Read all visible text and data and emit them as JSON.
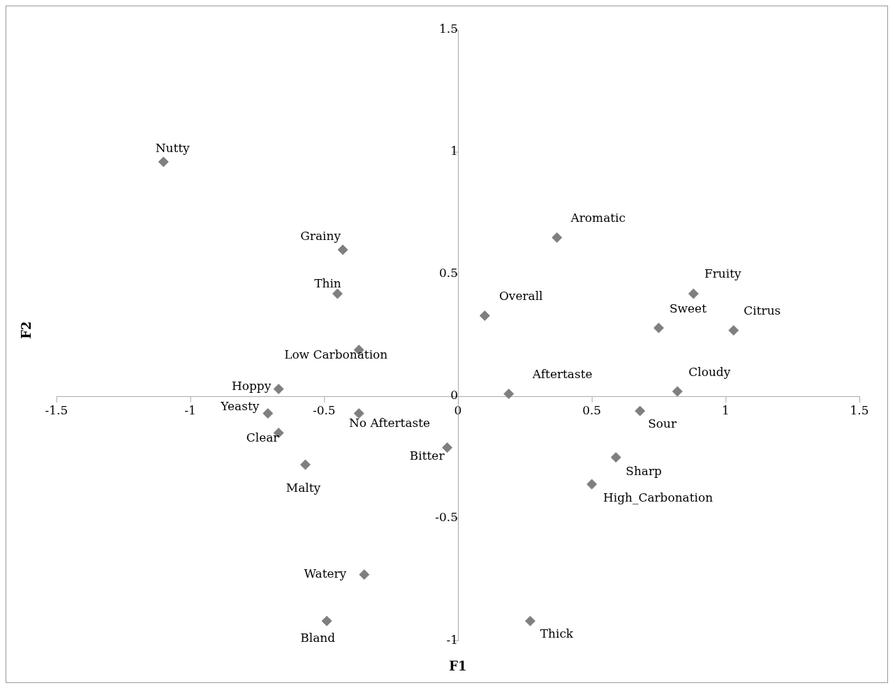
{
  "chart_data": {
    "type": "scatter",
    "xlabel": "F1",
    "ylabel": "F2",
    "x": [
      -1.1,
      -0.43,
      -0.45,
      -0.37,
      -0.67,
      -0.71,
      -0.67,
      -0.37,
      -0.57,
      -0.04,
      -0.35,
      -0.49,
      0.27,
      0.1,
      0.37,
      0.19,
      0.88,
      0.75,
      1.03,
      0.82,
      0.68,
      0.59,
      0.5
    ],
    "values": [
      0.96,
      0.6,
      0.42,
      0.19,
      0.03,
      -0.07,
      -0.15,
      -0.07,
      -0.28,
      -0.21,
      -0.73,
      -0.92,
      -0.92,
      0.33,
      0.65,
      0.01,
      0.42,
      0.28,
      0.27,
      0.02,
      -0.06,
      -0.25,
      -0.36
    ],
    "color": "#7f7f7f",
    "marker": "diamond",
    "grid": false,
    "legend": false,
    "xlim": [
      -1.5,
      1.5
    ],
    "xticks": [
      -1.5,
      -1,
      -0.5,
      0,
      0.5,
      1,
      1.5
    ],
    "ylim": [
      -1,
      1.5
    ],
    "yticks": [
      -1,
      -0.5,
      0,
      0.5,
      1,
      1.5
    ],
    "annotations": [
      {
        "text": "Nutty",
        "x": -1.1,
        "y": 0.96
      },
      {
        "text": "Grainy",
        "x": -0.43,
        "y": 0.6
      },
      {
        "text": "Thin",
        "x": -0.45,
        "y": 0.42
      },
      {
        "text": "Low Carbonation",
        "x": -0.37,
        "y": 0.19
      },
      {
        "text": "Hoppy",
        "x": -0.67,
        "y": 0.03
      },
      {
        "text": "Yeasty",
        "x": -0.71,
        "y": -0.07
      },
      {
        "text": "Clear",
        "x": -0.67,
        "y": -0.15
      },
      {
        "text": "No Aftertaste",
        "x": -0.37,
        "y": -0.07
      },
      {
        "text": "Malty",
        "x": -0.57,
        "y": -0.28
      },
      {
        "text": "Bitter",
        "x": -0.04,
        "y": -0.21
      },
      {
        "text": "Watery",
        "x": -0.35,
        "y": -0.73
      },
      {
        "text": "Bland",
        "x": -0.49,
        "y": -0.92
      },
      {
        "text": "Thick",
        "x": 0.27,
        "y": -0.92
      },
      {
        "text": "Overall",
        "x": 0.1,
        "y": 0.33
      },
      {
        "text": "Aromatic",
        "x": 0.37,
        "y": 0.65
      },
      {
        "text": "Aftertaste",
        "x": 0.19,
        "y": 0.01
      },
      {
        "text": "Fruity",
        "x": 0.88,
        "y": 0.42
      },
      {
        "text": "Sweet",
        "x": 0.75,
        "y": 0.28
      },
      {
        "text": "Citrus",
        "x": 1.03,
        "y": 0.27
      },
      {
        "text": "Cloudy",
        "x": 0.82,
        "y": 0.02
      },
      {
        "text": "Sour",
        "x": 0.68,
        "y": -0.06
      },
      {
        "text": "Sharp",
        "x": 0.59,
        "y": -0.25
      },
      {
        "text": "High_Carbonation",
        "x": 0.5,
        "y": -0.36
      }
    ]
  }
}
